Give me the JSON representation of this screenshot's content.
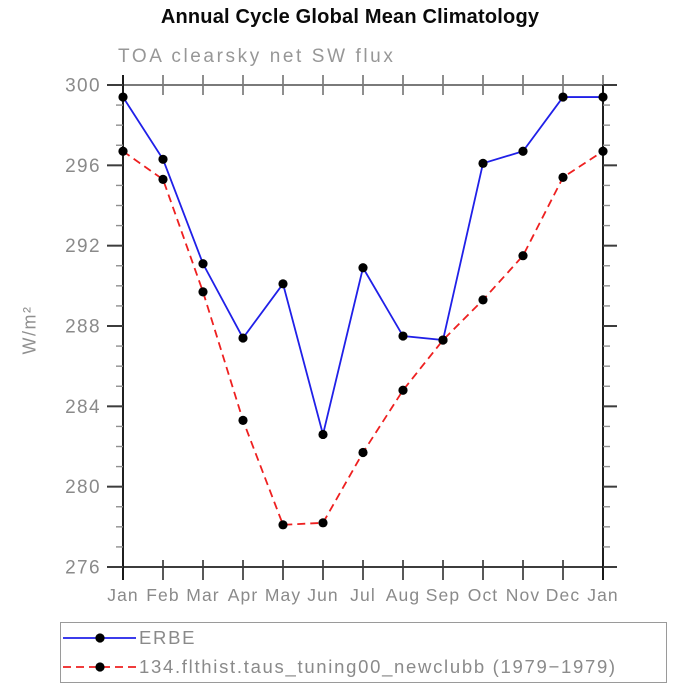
{
  "chart_data": {
    "type": "line",
    "title": "Annual Cycle Global Mean Climatology",
    "subtitle": "TOA clearsky net SW flux",
    "ylabel": "W/m²",
    "xlabel": "",
    "categories": [
      "Jan",
      "Feb",
      "Mar",
      "Apr",
      "May",
      "Jun",
      "Jul",
      "Aug",
      "Sep",
      "Oct",
      "Nov",
      "Dec",
      "Jan"
    ],
    "ylim": [
      276,
      300
    ],
    "ytick_major_step": 4,
    "ytick_minor_step": 1,
    "ytick_labels": [
      "276",
      "280",
      "284",
      "288",
      "292",
      "296",
      "300"
    ],
    "grid": "off",
    "legend_position": "bottom",
    "marker": "filled-circle",
    "marker_color": "#000000",
    "series": [
      {
        "name": "ERBE",
        "color": "#2020e8",
        "style": "solid",
        "values": [
          299.4,
          296.3,
          291.1,
          287.4,
          290.1,
          282.6,
          290.9,
          287.5,
          287.3,
          296.1,
          296.7,
          299.4,
          299.4
        ]
      },
      {
        "name": "134.flthist.taus_tuning00_newclubb (1979−1979)",
        "color": "#ee2020",
        "style": "dashed",
        "values": [
          296.7,
          295.3,
          289.7,
          283.3,
          278.1,
          278.2,
          281.7,
          284.8,
          287.3,
          289.3,
          291.5,
          295.4,
          296.7
        ]
      }
    ]
  }
}
